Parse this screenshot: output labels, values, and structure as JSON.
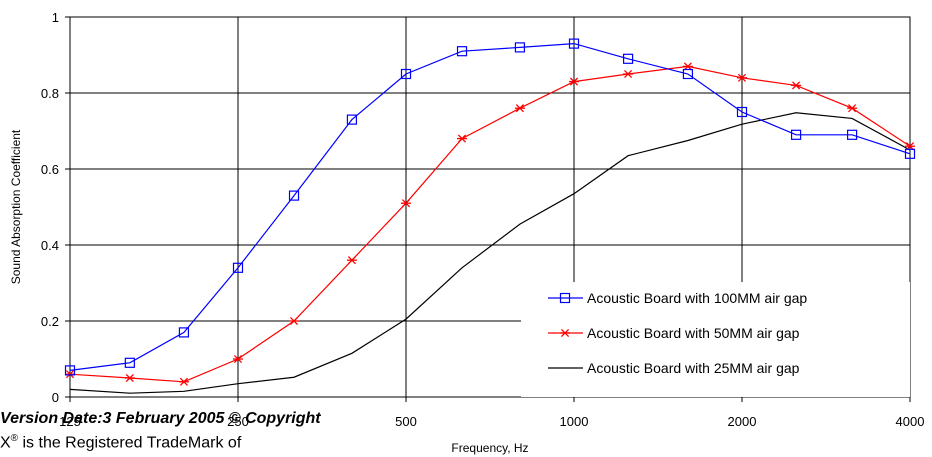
{
  "chart_data": {
    "type": "line",
    "title": "",
    "xlabel": "Frequency, Hz",
    "ylabel": "Sound Absorption Coefficient",
    "ylim": [
      0,
      1
    ],
    "yticks": [
      0,
      0.2,
      0.4,
      0.6,
      0.8,
      1
    ],
    "ytick_labels": [
      "0",
      "0.2",
      "0.4",
      "0.6",
      "0.8",
      "1"
    ],
    "x_scale": "log2",
    "xlim": [
      125,
      4000
    ],
    "xticks": [
      125,
      250,
      500,
      1000,
      2000,
      4000
    ],
    "xtick_labels": [
      "125",
      "250",
      "500",
      "1000",
      "2000",
      "4000"
    ],
    "grid": true,
    "legend_position": "bottom-right",
    "x": [
      125,
      160,
      200,
      250,
      315,
      400,
      500,
      630,
      800,
      1000,
      1250,
      1600,
      2000,
      2500,
      3150,
      4000
    ],
    "series": [
      {
        "name": "Acoustic Board with 100MM air gap",
        "color": "#0000ff",
        "marker": "square",
        "values": [
          0.07,
          0.09,
          0.17,
          0.34,
          0.53,
          0.73,
          0.85,
          0.91,
          0.92,
          0.93,
          0.89,
          0.85,
          0.75,
          0.69,
          0.69,
          0.64
        ]
      },
      {
        "name": "Acoustic Board with 50MM air gap",
        "color": "#ff0000",
        "marker": "asterisk",
        "values": [
          0.06,
          0.05,
          0.04,
          0.1,
          0.2,
          0.36,
          0.51,
          0.68,
          0.76,
          0.83,
          0.85,
          0.87,
          0.84,
          0.82,
          0.76,
          0.66
        ]
      },
      {
        "name": "Acoustic Board with 25MM air gap",
        "color": "#000000",
        "marker": "none",
        "values": [
          0.02,
          0.01,
          0.015,
          0.035,
          0.052,
          0.115,
          0.205,
          0.34,
          0.455,
          0.535,
          0.635,
          0.675,
          0.718,
          0.748,
          0.733,
          0.65
        ]
      }
    ]
  },
  "overlay": {
    "version_text": "Version Date:3 February 2005  © Copyright",
    "trademark_prefix": "X",
    "trademark_symbol": "®",
    "trademark_text": " is the Registered TradeMark of"
  }
}
